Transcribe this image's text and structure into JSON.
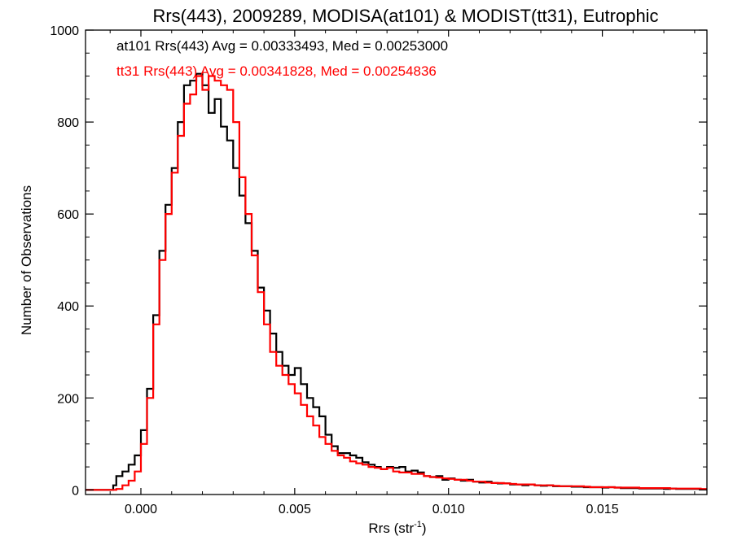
{
  "chart_data": {
    "type": "line",
    "title": "Rrs(443), 2009289, MODISA(at101) & MODIST(tt31), Eutrophic",
    "xlabel_main": "Rrs (str",
    "xlabel_sup": "-1",
    "xlabel_close": ")",
    "ylabel": "Number of Observations",
    "xlim": [
      -0.0018,
      0.0184
    ],
    "ylim": [
      -10,
      1000
    ],
    "x_ticks": [
      {
        "value": 0.0,
        "label": "0.000"
      },
      {
        "value": 0.005,
        "label": "0.005"
      },
      {
        "value": 0.01,
        "label": "0.010"
      },
      {
        "value": 0.015,
        "label": "0.015"
      }
    ],
    "y_ticks": [
      {
        "value": 0,
        "label": "0"
      },
      {
        "value": 200,
        "label": "200"
      },
      {
        "value": 400,
        "label": "400"
      },
      {
        "value": 600,
        "label": "600"
      },
      {
        "value": 800,
        "label": "800"
      },
      {
        "value": 1000,
        "label": "1000"
      }
    ],
    "annotations": [
      {
        "text": "at101 Rrs(443) Avg = 0.00333493, Med = 0.00253000",
        "color": "#000000"
      },
      {
        "text": "tt31 Rrs(443) Avg = 0.00341828, Med = 0.00254836",
        "color": "#ff0000"
      }
    ],
    "series": [
      {
        "name": "at101",
        "color": "#000000",
        "points": [
          [
            -0.0018,
            0
          ],
          [
            -0.001,
            0
          ],
          [
            -0.0009,
            10
          ],
          [
            -0.0008,
            30
          ],
          [
            -0.0006,
            40
          ],
          [
            -0.0004,
            55
          ],
          [
            -0.0002,
            75
          ],
          [
            0.0,
            130
          ],
          [
            0.0002,
            220
          ],
          [
            0.0004,
            380
          ],
          [
            0.0006,
            520
          ],
          [
            0.0008,
            620
          ],
          [
            0.001,
            700
          ],
          [
            0.0012,
            800
          ],
          [
            0.0014,
            880
          ],
          [
            0.0016,
            890
          ],
          [
            0.0018,
            905
          ],
          [
            0.002,
            880
          ],
          [
            0.0022,
            820
          ],
          [
            0.0024,
            850
          ],
          [
            0.0026,
            790
          ],
          [
            0.0028,
            760
          ],
          [
            0.003,
            700
          ],
          [
            0.0032,
            640
          ],
          [
            0.0034,
            580
          ],
          [
            0.0036,
            520
          ],
          [
            0.0038,
            440
          ],
          [
            0.004,
            390
          ],
          [
            0.0042,
            340
          ],
          [
            0.0044,
            300
          ],
          [
            0.0046,
            270
          ],
          [
            0.0048,
            250
          ],
          [
            0.005,
            265
          ],
          [
            0.0052,
            230
          ],
          [
            0.0054,
            200
          ],
          [
            0.0056,
            180
          ],
          [
            0.0058,
            160
          ],
          [
            0.006,
            120
          ],
          [
            0.0062,
            95
          ],
          [
            0.0064,
            80
          ],
          [
            0.0066,
            80
          ],
          [
            0.0068,
            75
          ],
          [
            0.007,
            70
          ],
          [
            0.0072,
            60
          ],
          [
            0.0074,
            55
          ],
          [
            0.0076,
            50
          ],
          [
            0.0078,
            45
          ],
          [
            0.008,
            50
          ],
          [
            0.0082,
            48
          ],
          [
            0.0084,
            50
          ],
          [
            0.0086,
            40
          ],
          [
            0.0088,
            42
          ],
          [
            0.009,
            38
          ],
          [
            0.0092,
            30
          ],
          [
            0.0094,
            28
          ],
          [
            0.0096,
            30
          ],
          [
            0.0098,
            22
          ],
          [
            0.01,
            25
          ],
          [
            0.0102,
            22
          ],
          [
            0.0104,
            20
          ],
          [
            0.0106,
            22
          ],
          [
            0.0108,
            18
          ],
          [
            0.011,
            16
          ],
          [
            0.0112,
            18
          ],
          [
            0.0114,
            15
          ],
          [
            0.0116,
            14
          ],
          [
            0.0118,
            14
          ],
          [
            0.012,
            12
          ],
          [
            0.0122,
            12
          ],
          [
            0.0124,
            10
          ],
          [
            0.0126,
            12
          ],
          [
            0.0128,
            10
          ],
          [
            0.013,
            9
          ],
          [
            0.0132,
            10
          ],
          [
            0.0134,
            8
          ],
          [
            0.0136,
            8
          ],
          [
            0.0138,
            8
          ],
          [
            0.014,
            7
          ],
          [
            0.0142,
            7
          ],
          [
            0.0144,
            6
          ],
          [
            0.0146,
            6
          ],
          [
            0.0148,
            6
          ],
          [
            0.015,
            5
          ],
          [
            0.0152,
            6
          ],
          [
            0.0154,
            5
          ],
          [
            0.0156,
            4
          ],
          [
            0.0158,
            4
          ],
          [
            0.016,
            4
          ],
          [
            0.0162,
            3
          ],
          [
            0.0164,
            3
          ],
          [
            0.0166,
            3
          ],
          [
            0.0168,
            3
          ],
          [
            0.017,
            2
          ],
          [
            0.0172,
            3
          ],
          [
            0.0174,
            2
          ],
          [
            0.0176,
            2
          ],
          [
            0.0178,
            2
          ],
          [
            0.018,
            2
          ],
          [
            0.0182,
            1
          ],
          [
            0.0184,
            1
          ]
        ]
      },
      {
        "name": "tt31",
        "color": "#ff0000",
        "points": [
          [
            -0.0018,
            0
          ],
          [
            -0.001,
            0
          ],
          [
            -0.0008,
            2
          ],
          [
            -0.0006,
            10
          ],
          [
            -0.0004,
            20
          ],
          [
            -0.0002,
            40
          ],
          [
            0.0,
            100
          ],
          [
            0.0002,
            200
          ],
          [
            0.0004,
            360
          ],
          [
            0.0006,
            500
          ],
          [
            0.0008,
            600
          ],
          [
            0.001,
            690
          ],
          [
            0.0012,
            770
          ],
          [
            0.0014,
            840
          ],
          [
            0.0016,
            860
          ],
          [
            0.0018,
            900
          ],
          [
            0.002,
            870
          ],
          [
            0.0022,
            900
          ],
          [
            0.0024,
            890
          ],
          [
            0.0026,
            880
          ],
          [
            0.0028,
            870
          ],
          [
            0.003,
            800
          ],
          [
            0.0032,
            680
          ],
          [
            0.0034,
            600
          ],
          [
            0.0036,
            510
          ],
          [
            0.0038,
            430
          ],
          [
            0.004,
            360
          ],
          [
            0.0042,
            300
          ],
          [
            0.0044,
            270
          ],
          [
            0.0046,
            250
          ],
          [
            0.0048,
            230
          ],
          [
            0.005,
            210
          ],
          [
            0.0052,
            185
          ],
          [
            0.0054,
            160
          ],
          [
            0.0056,
            140
          ],
          [
            0.0058,
            115
          ],
          [
            0.006,
            100
          ],
          [
            0.0062,
            85
          ],
          [
            0.0064,
            75
          ],
          [
            0.0066,
            70
          ],
          [
            0.0068,
            62
          ],
          [
            0.007,
            58
          ],
          [
            0.0072,
            55
          ],
          [
            0.0074,
            50
          ],
          [
            0.0076,
            48
          ],
          [
            0.0078,
            45
          ],
          [
            0.008,
            48
          ],
          [
            0.0082,
            40
          ],
          [
            0.0084,
            38
          ],
          [
            0.0086,
            38
          ],
          [
            0.0088,
            35
          ],
          [
            0.009,
            35
          ],
          [
            0.0092,
            30
          ],
          [
            0.0094,
            28
          ],
          [
            0.0096,
            27
          ],
          [
            0.0098,
            25
          ],
          [
            0.01,
            24
          ],
          [
            0.0102,
            22
          ],
          [
            0.0104,
            22
          ],
          [
            0.0106,
            20
          ],
          [
            0.0108,
            18
          ],
          [
            0.011,
            18
          ],
          [
            0.0112,
            16
          ],
          [
            0.0114,
            15
          ],
          [
            0.0116,
            15
          ],
          [
            0.0118,
            14
          ],
          [
            0.012,
            13
          ],
          [
            0.0122,
            12
          ],
          [
            0.0124,
            12
          ],
          [
            0.0126,
            12
          ],
          [
            0.0128,
            10
          ],
          [
            0.013,
            10
          ],
          [
            0.0132,
            10
          ],
          [
            0.0134,
            9
          ],
          [
            0.0136,
            8
          ],
          [
            0.0138,
            8
          ],
          [
            0.014,
            8
          ],
          [
            0.0142,
            8
          ],
          [
            0.0144,
            7
          ],
          [
            0.0146,
            6
          ],
          [
            0.0148,
            6
          ],
          [
            0.015,
            6
          ],
          [
            0.0152,
            6
          ],
          [
            0.0154,
            5
          ],
          [
            0.0156,
            5
          ],
          [
            0.0158,
            5
          ],
          [
            0.016,
            5
          ],
          [
            0.0162,
            4
          ],
          [
            0.0164,
            4
          ],
          [
            0.0166,
            4
          ],
          [
            0.0168,
            4
          ],
          [
            0.017,
            4
          ],
          [
            0.0172,
            3
          ],
          [
            0.0174,
            3
          ],
          [
            0.0176,
            3
          ],
          [
            0.0178,
            3
          ],
          [
            0.018,
            3
          ],
          [
            0.0182,
            2
          ],
          [
            0.0184,
            2
          ]
        ]
      }
    ],
    "grid": false,
    "legend": "none"
  }
}
